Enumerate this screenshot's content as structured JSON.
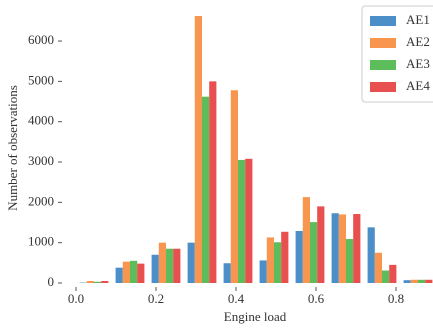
{
  "chart_data": {
    "type": "histogram",
    "x_label": "Engine load",
    "y_label": "Number of observations",
    "bins": [
      0,
      0.09,
      0.18,
      0.27,
      0.36,
      0.45,
      0.54,
      0.63,
      0.72,
      0.81,
      0.9
    ],
    "series": [
      {
        "name": "AE1",
        "color": "#4c8fc8",
        "values": [
          10,
          380,
          700,
          1000,
          490,
          560,
          1290,
          1730,
          1380,
          70
        ]
      },
      {
        "name": "AE2",
        "color": "#f8964f",
        "values": [
          50,
          530,
          1000,
          6620,
          4780,
          1130,
          2130,
          1700,
          750,
          80
        ]
      },
      {
        "name": "AE3",
        "color": "#5cbd5a",
        "values": [
          30,
          550,
          850,
          4620,
          3050,
          1010,
          1510,
          1090,
          310,
          80
        ]
      },
      {
        "name": "AE4",
        "color": "#e8504f",
        "values": [
          50,
          480,
          850,
          5000,
          3080,
          1270,
          1900,
          1710,
          450,
          80
        ]
      }
    ],
    "xlim": [
      -0.03,
      0.89
    ],
    "ylim": [
      0,
      6700
    ],
    "xticks": [
      {
        "value": 0,
        "label": "0.0"
      },
      0.2,
      0.4,
      0.6,
      0.8
    ],
    "yticks": [
      0,
      1000,
      2000,
      3000,
      4000,
      5000,
      6000
    ],
    "legend": "upper right"
  }
}
